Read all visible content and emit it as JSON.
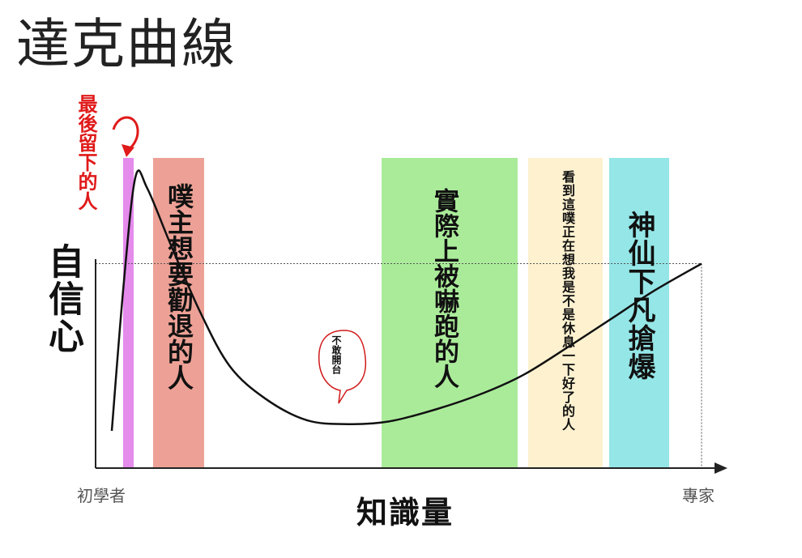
{
  "title": "達克曲線",
  "chart_data": {
    "type": "line",
    "ylabel": "自信心",
    "xlabel": "知識量",
    "x_start_label": "初學者",
    "x_end_label": "專家",
    "peak_annotation": "最後留下的人",
    "callout": "不敢開台",
    "zones": [
      {
        "label": "噗主想要勸退的人",
        "color": "#eda196"
      },
      {
        "label": "實際上被嚇跑的人",
        "color": "#aaeb9a"
      },
      {
        "label": "看到這噗正在想我是不是休息一下好了的人",
        "color": "#fdf1cf"
      },
      {
        "label": "神仙下凡搶爆",
        "color": "#95e6e7"
      }
    ],
    "peak_band_color": "#e58bec",
    "curve_points": [
      [
        0.0,
        0.06
      ],
      [
        0.02,
        0.6
      ],
      [
        0.04,
        1.0
      ],
      [
        0.06,
        0.96
      ],
      [
        0.1,
        0.75
      ],
      [
        0.15,
        0.5
      ],
      [
        0.2,
        0.3
      ],
      [
        0.26,
        0.18
      ],
      [
        0.33,
        0.1
      ],
      [
        0.4,
        0.085
      ],
      [
        0.47,
        0.095
      ],
      [
        0.55,
        0.14
      ],
      [
        0.63,
        0.2
      ],
      [
        0.7,
        0.27
      ],
      [
        0.78,
        0.38
      ],
      [
        0.85,
        0.48
      ],
      [
        0.92,
        0.58
      ],
      [
        1.0,
        0.68
      ]
    ],
    "reference_line_y": 0.68,
    "grid": false
  }
}
